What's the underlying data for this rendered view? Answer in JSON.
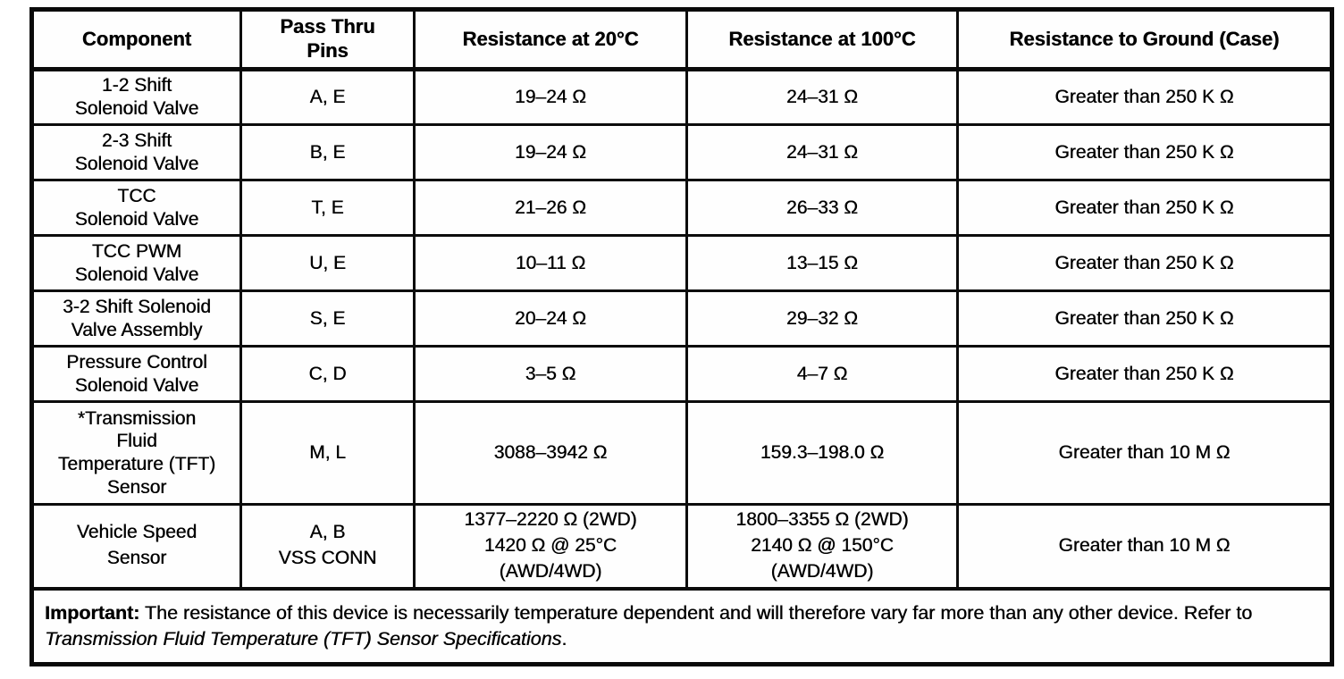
{
  "table": {
    "headers": [
      "Component",
      "Pass Thru\nPins",
      "Resistance at 20°C",
      "Resistance at 100°C",
      "Resistance to Ground (Case)"
    ],
    "rows": [
      [
        "1-2 Shift\nSolenoid Valve",
        "A, E",
        "19–24 Ω",
        "24–31 Ω",
        "Greater than 250 K Ω"
      ],
      [
        "2-3 Shift\nSolenoid Valve",
        "B, E",
        "19–24 Ω",
        "24–31 Ω",
        "Greater than 250 K Ω"
      ],
      [
        "TCC\nSolenoid Valve",
        "T, E",
        "21–26 Ω",
        "26–33 Ω",
        "Greater than 250 K Ω"
      ],
      [
        "TCC PWM\nSolenoid Valve",
        "U, E",
        "10–11 Ω",
        "13–15 Ω",
        "Greater than 250 K Ω"
      ],
      [
        "3-2 Shift Solenoid\nValve Assembly",
        "S, E",
        "20–24 Ω",
        "29–32 Ω",
        "Greater than 250 K Ω"
      ],
      [
        "Pressure Control\nSolenoid Valve",
        "C, D",
        "3–5 Ω",
        "4–7 Ω",
        "Greater than 250 K Ω"
      ],
      [
        "*Transmission\nFluid\nTemperature (TFT)\nSensor",
        "M, L",
        "3088–3942 Ω",
        "159.3–198.0 Ω",
        "Greater than 10 M Ω"
      ],
      [
        "Vehicle Speed\nSensor",
        "A, B\nVSS CONN",
        "1377–2220 Ω (2WD)\n1420 Ω @ 25°C\n(AWD/4WD)",
        "1800–3355 Ω (2WD)\n2140 Ω @ 150°C\n(AWD/4WD)",
        "Greater than 10 M Ω"
      ]
    ],
    "footnote": {
      "label": "Important:",
      "body": " The resistance of this device is necessarily temperature dependent and will therefore vary far more than any other device. Refer to ",
      "italic": "Transmission Fluid Temperature (TFT) Sensor Specifications",
      "suffix": "."
    }
  }
}
